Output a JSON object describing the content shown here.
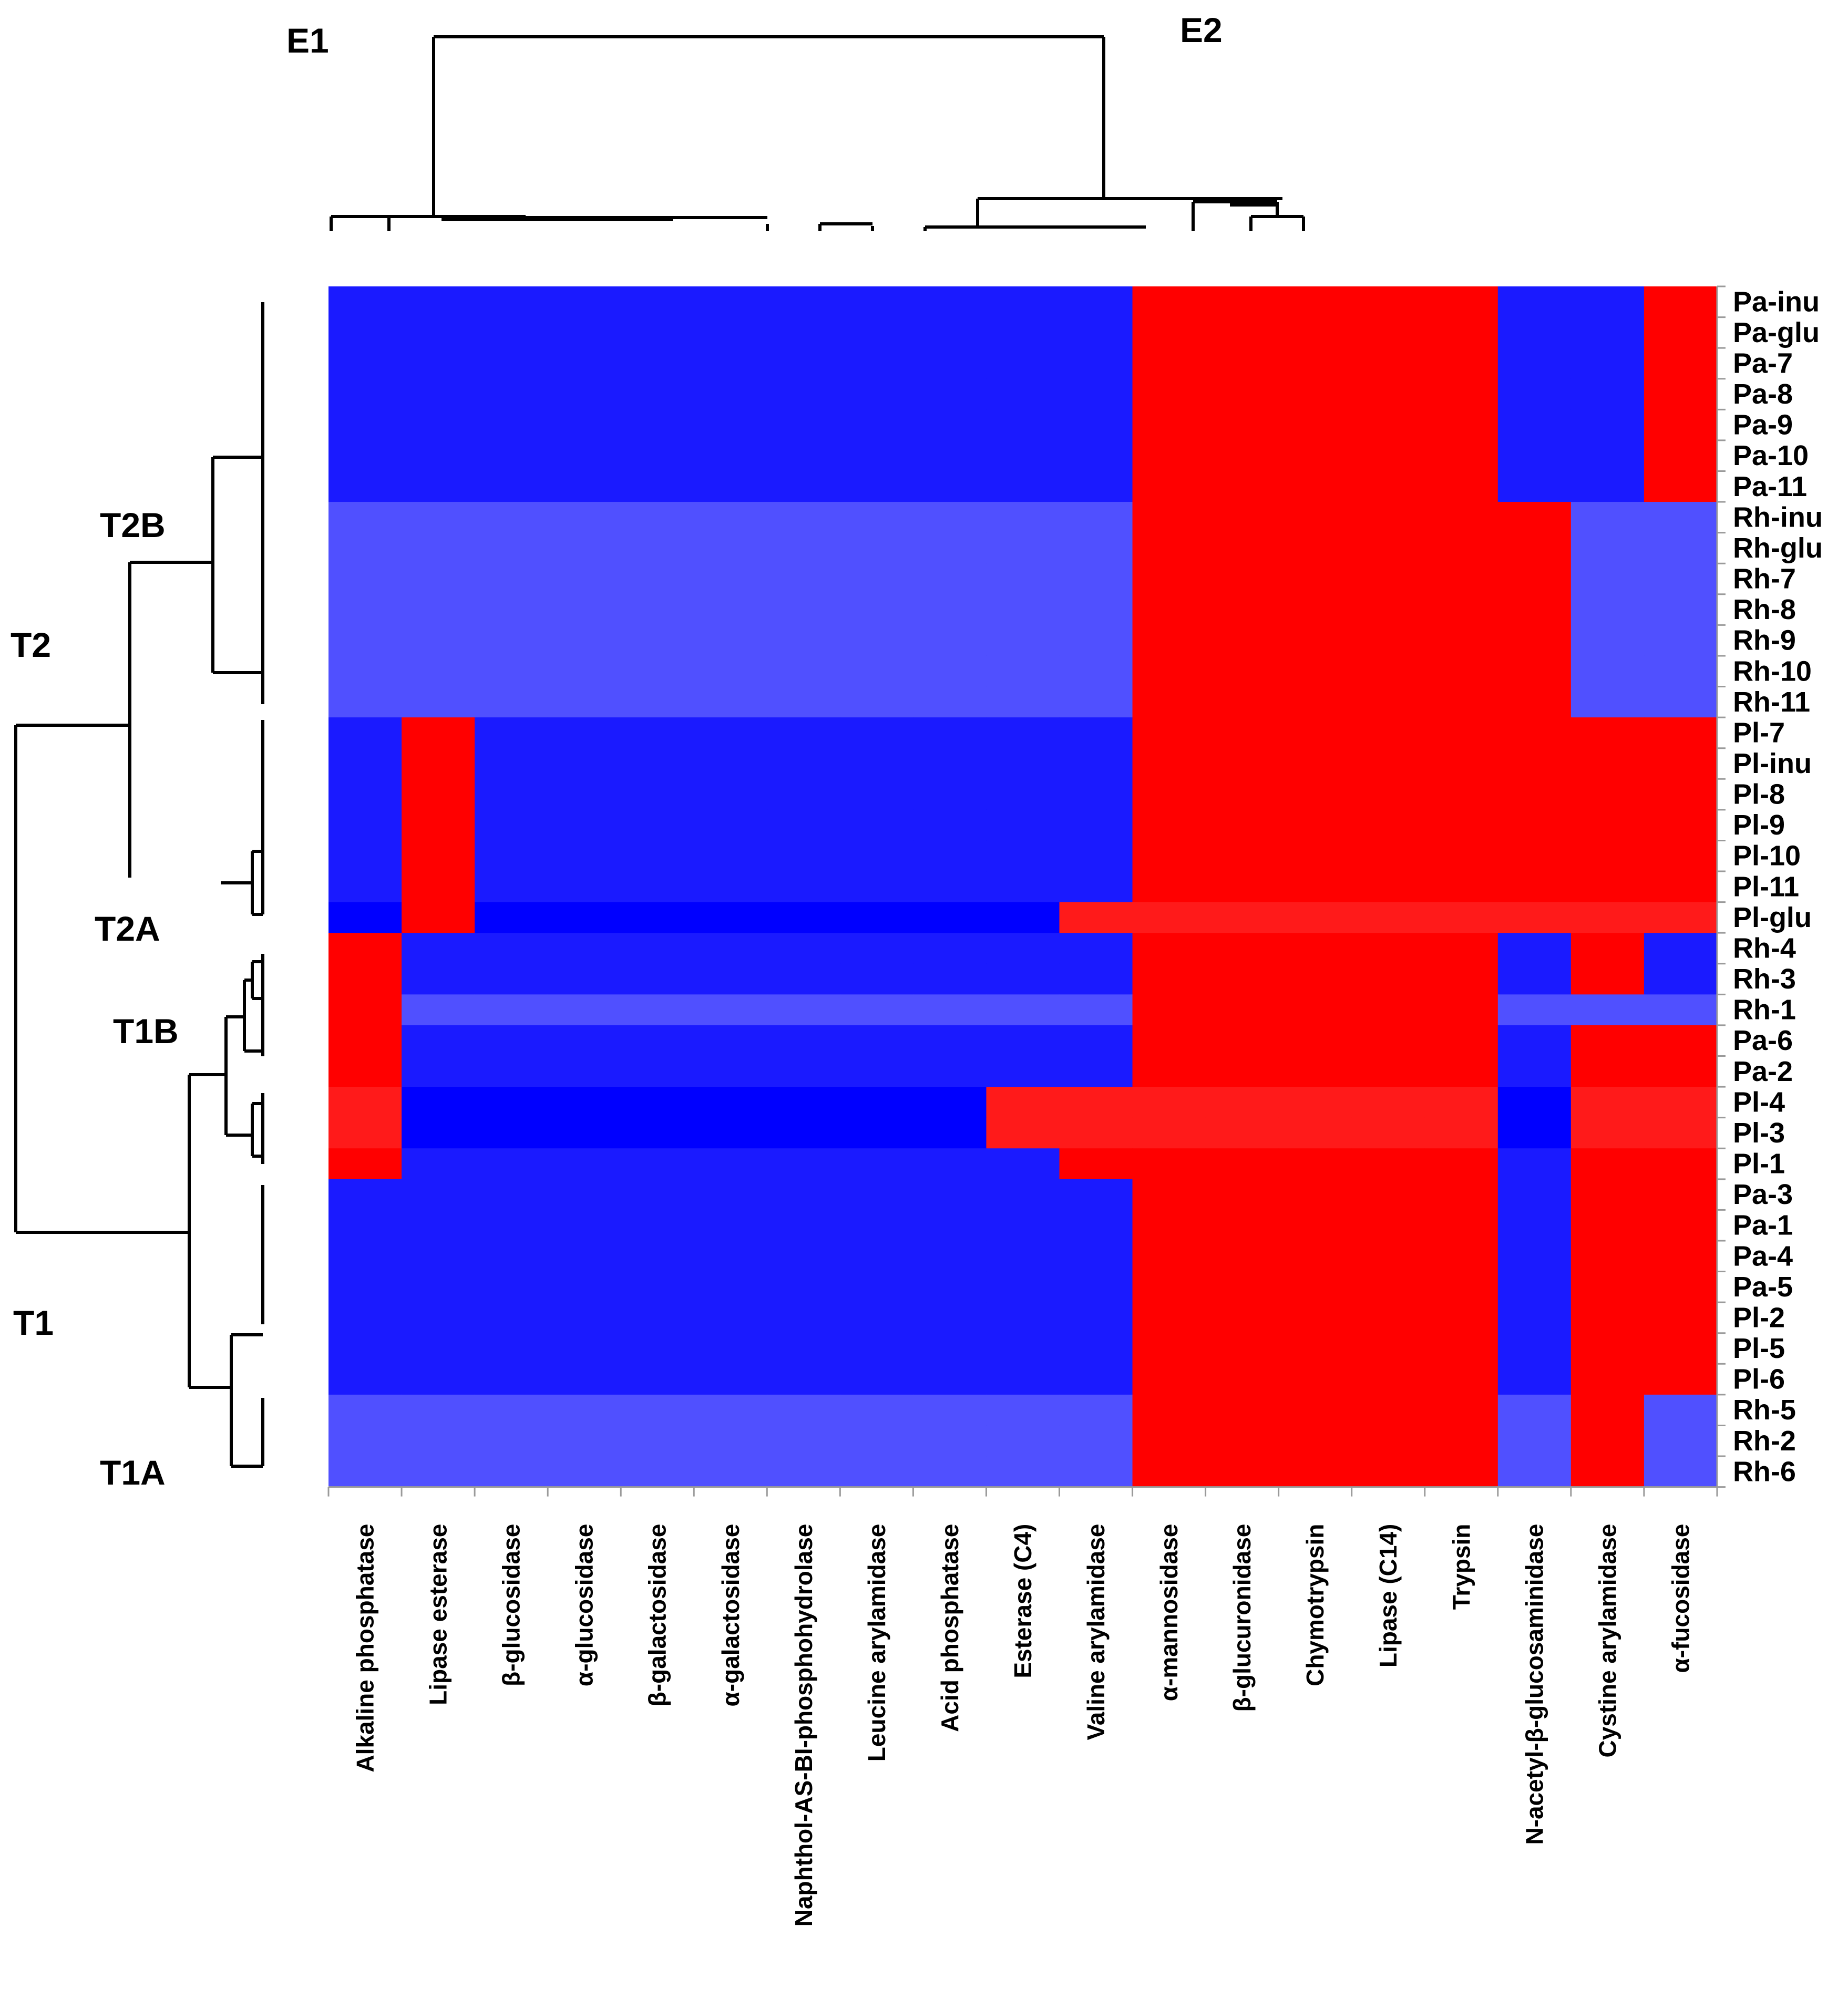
{
  "chart_data": {
    "type": "heatmap",
    "columns": [
      "Alkaline phosphatase",
      "Lipase esterase",
      "β-glucosidase",
      "α-glucosidase",
      "β-galactosidase",
      "α-galactosidase",
      "Naphthol-AS-BI-phosphohydrolase",
      "Leucine arylamidase",
      "Acid phosphatase",
      "Esterase (C4)",
      "Valine arylamidase",
      "α-mannosidase",
      "β-glucuronidase",
      "Chymotrypsin",
      "Lipase (C14)",
      "Trypsin",
      "N-acetyl-β-glucosaminidase",
      "Cystine arylamidase",
      "α-fucosidase"
    ],
    "rows": [
      "Pa-inu",
      "Pa-glu",
      "Pa-7",
      "Pa-8",
      "Pa-9",
      "Pa-10",
      "Pa-11",
      "Rh-inu",
      "Rh-glu",
      "Rh-7",
      "Rh-8",
      "Rh-9",
      "Rh-10",
      "Rh-11",
      "Pl-7",
      "Pl-inu",
      "Pl-8",
      "Pl-9",
      "Pl-10",
      "Pl-11",
      "Pl-glu",
      "Rh-4",
      "Rh-3",
      "Rh-1",
      "Pa-6",
      "Pa-2",
      "Pl-4",
      "Pl-3",
      "Pl-1",
      "Pa-3",
      "Pa-1",
      "Pa-4",
      "Pa-5",
      "Pl-2",
      "Pl-5",
      "Pl-6",
      "Rh-5",
      "Rh-2",
      "Rh-6"
    ],
    "values": [
      "BBBBBBBBBBBRRRRRBBR",
      "BBBBBBBBBBBRRRRRBBR",
      "BBBBBBBBBBBRRRRRBBR",
      "BBBBBBBBBBBRRRRRBBR",
      "BBBBBBBBBBBRRRRRBBR",
      "BBBBBBBBBBBRRRRRBBR",
      "BBBBBBBBBBBRRRRRBBR",
      "LLLLLLLLLLLRRRRRRLL",
      "LLLLLLLLLLLRRRRRRLL",
      "LLLLLLLLLLLRRRRRRLL",
      "LLLLLLLLLLLRRRRRRLL",
      "LLLLLLLLLLLRRRRRRLL",
      "LLLLLLLLLLLRRRRRRLL",
      "LLLLLLLLLLLRRRRRRLL",
      "BRBBBBBBBBBRRRRRRRR",
      "BRBBBBBBBBBRRRRRRRR",
      "BRBBBBBBBBBRRRRRRRR",
      "BRBBBBBBBBBRRRRRRRR",
      "BRBBBBBBBBBRRRRRRRR",
      "BRBBBBBBBBBRRRRRRRR",
      "DRDDDDDDDDSSSSSSSSS",
      "RBBBBBBBBBBRRRRRBRB",
      "RBBBBBBBBBBRRRRRBRB",
      "RLLLLLLLLLLRRRRRLLL",
      "RBBBBBBBBBBRRRRRBRR",
      "RBBBBBBBBBBRRRRRBRR",
      "SDDDDDDDDSSSSSSSDSS",
      "SDDDDDDDDSSSSSSSDSS",
      "RBBBBBBBBBRRRRRRBRR",
      "BBBBBBBBBBBRRRRRBRR",
      "BBBBBBBBBBBRRRRRBRR",
      "BBBBBBBBBBBRRRRRBRR",
      "BBBBBBBBBBBRRRRRBRR",
      "BBBBBBBBBBBRRRRRBRR",
      "BBBBBBBBBBBRRRRRBRR",
      "BBBBBBBBBBBRRRRRBRR",
      "LLLLLLLLLLLRRRRRLRL",
      "LLLLLLLLLLLRRRRRLRL",
      "LLLLLLLLLLLRRRRRLRL"
    ],
    "colors": {
      "B": "#1a1aff",
      "D": "#0000ff",
      "L": "#5050ff",
      "R": "#ff0000",
      "S": "#ff1a1a"
    },
    "column_clusters": [
      "E1",
      "E2"
    ],
    "row_clusters": [
      "T2B",
      "T2",
      "T2A",
      "T1B",
      "T1",
      "T1A"
    ]
  }
}
